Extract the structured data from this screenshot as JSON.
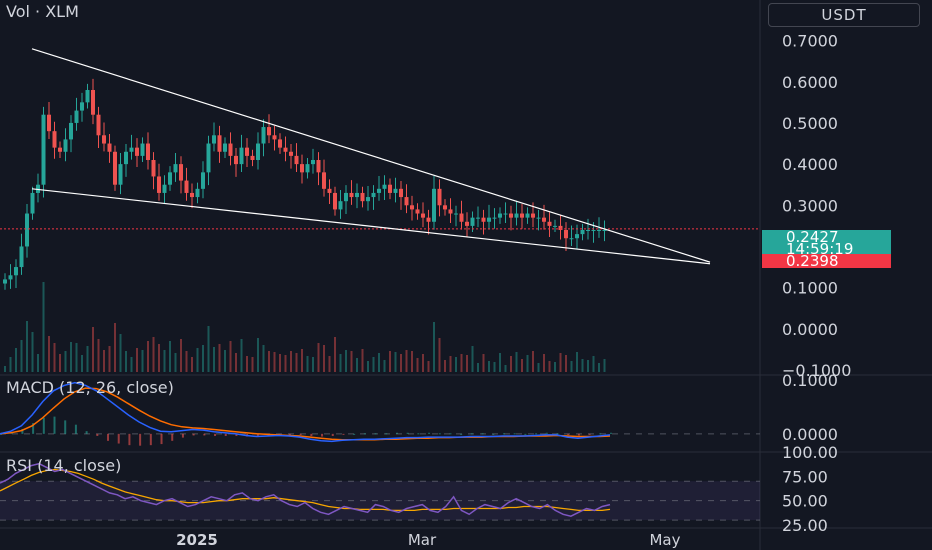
{
  "header": {
    "vol_label": "Vol · XLM",
    "currency_button": "USDT"
  },
  "price_scale": {
    "ticks": [
      "0.7000",
      "0.6000",
      "0.5000",
      "0.4000",
      "0.3000",
      "0.1000",
      "0.0000",
      "−0.1000"
    ],
    "current_price": "0.2427",
    "countdown": "14:59:19",
    "line_price": "0.2398"
  },
  "macd": {
    "title": "MACD (12, 26, close)",
    "ticks": [
      "0.1000",
      "0.0000"
    ]
  },
  "rsi": {
    "title": "RSI (14, close)",
    "ticks": [
      "100.00",
      "75.00",
      "50.00",
      "25.00"
    ]
  },
  "time_axis": {
    "labels": [
      "2025",
      "Mar",
      "May"
    ]
  },
  "colors": {
    "background": "#131722",
    "up": "#26a69a",
    "down": "#ef5350",
    "macd_line": "#2962ff",
    "signal_line": "#ff6d00",
    "rsi_line": "#7e57c2",
    "rsi_ma": "#f7a600",
    "trendline": "#ffffff"
  },
  "chart_data": {
    "type": "candlestick",
    "symbol": "XLM/USDT",
    "price_range": [
      -0.1,
      0.75
    ],
    "close_series": [
      0.12,
      0.13,
      0.15,
      0.2,
      0.28,
      0.33,
      0.35,
      0.52,
      0.48,
      0.44,
      0.43,
      0.46,
      0.5,
      0.53,
      0.55,
      0.58,
      0.52,
      0.47,
      0.45,
      0.43,
      0.35,
      0.4,
      0.43,
      0.44,
      0.42,
      0.45,
      0.41,
      0.37,
      0.33,
      0.35,
      0.38,
      0.4,
      0.36,
      0.33,
      0.32,
      0.34,
      0.38,
      0.45,
      0.47,
      0.43,
      0.45,
      0.42,
      0.4,
      0.44,
      0.42,
      0.41,
      0.45,
      0.49,
      0.47,
      0.46,
      0.44,
      0.43,
      0.42,
      0.4,
      0.38,
      0.4,
      0.41,
      0.38,
      0.34,
      0.33,
      0.29,
      0.31,
      0.33,
      0.32,
      0.33,
      0.31,
      0.32,
      0.33,
      0.34,
      0.35,
      0.33,
      0.34,
      0.32,
      0.3,
      0.29,
      0.28,
      0.27,
      0.26,
      0.34,
      0.3,
      0.29,
      0.28,
      0.28,
      0.26,
      0.25,
      0.27,
      0.27,
      0.26,
      0.27,
      0.27,
      0.28,
      0.28,
      0.27,
      0.28,
      0.27,
      0.28,
      0.27,
      0.27,
      0.26,
      0.25,
      0.25,
      0.24,
      0.22,
      0.22,
      0.23,
      0.24,
      0.24,
      0.24,
      0.24,
      0.24
    ],
    "macd_range": [
      -0.03,
      0.1
    ],
    "macd": [
      0.0,
      0.005,
      0.015,
      0.035,
      0.06,
      0.08,
      0.09,
      0.095,
      0.09,
      0.08,
      0.065,
      0.05,
      0.035,
      0.022,
      0.012,
      0.005,
      0.004,
      0.006,
      0.008,
      0.007,
      0.004,
      0.002,
      0.0,
      -0.003,
      -0.005,
      -0.004,
      -0.003,
      -0.004,
      -0.006,
      -0.01,
      -0.013,
      -0.014,
      -0.012,
      -0.011,
      -0.01,
      -0.01,
      -0.009,
      -0.008,
      -0.007,
      -0.007,
      -0.006,
      -0.006,
      -0.006,
      -0.006,
      -0.005,
      -0.005,
      -0.005,
      -0.004,
      -0.004,
      -0.004,
      -0.003,
      -0.002,
      -0.002,
      -0.006,
      -0.008,
      -0.006,
      -0.004,
      -0.002
    ],
    "signal": [
      0.0,
      0.002,
      0.006,
      0.015,
      0.03,
      0.048,
      0.065,
      0.078,
      0.085,
      0.084,
      0.078,
      0.068,
      0.056,
      0.044,
      0.033,
      0.024,
      0.017,
      0.013,
      0.011,
      0.01,
      0.008,
      0.006,
      0.004,
      0.002,
      0.0,
      -0.001,
      -0.002,
      -0.003,
      -0.004,
      -0.006,
      -0.008,
      -0.01,
      -0.011,
      -0.011,
      -0.011,
      -0.011,
      -0.01,
      -0.01,
      -0.009,
      -0.008,
      -0.008,
      -0.007,
      -0.007,
      -0.006,
      -0.006,
      -0.006,
      -0.005,
      -0.005,
      -0.005,
      -0.004,
      -0.004,
      -0.004,
      -0.003,
      -0.004,
      -0.005,
      -0.005,
      -0.005,
      -0.004
    ],
    "rsi_range": [
      25,
      100
    ],
    "rsi": [
      68,
      72,
      78,
      82,
      86,
      88,
      84,
      80,
      82,
      78,
      74,
      70,
      66,
      62,
      58,
      56,
      52,
      54,
      50,
      48,
      46,
      50,
      52,
      48,
      44,
      46,
      50,
      54,
      52,
      50,
      56,
      58,
      52,
      50,
      54,
      56,
      50,
      46,
      44,
      48,
      42,
      38,
      36,
      40,
      44,
      42,
      40,
      38,
      46,
      44,
      40,
      38,
      42,
      44,
      46,
      40,
      38,
      44,
      54,
      40,
      36,
      42,
      46,
      44,
      42,
      48,
      52,
      48,
      44,
      42,
      46,
      40,
      36,
      34,
      38,
      42,
      40,
      44,
      46
    ],
    "rsi_ma": [
      60,
      64,
      68,
      72,
      76,
      79,
      81,
      82,
      81,
      80,
      78,
      75,
      72,
      68,
      65,
      62,
      59,
      57,
      55,
      53,
      51,
      50,
      50,
      49,
      48,
      48,
      48,
      49,
      50,
      50,
      51,
      52,
      52,
      52,
      52,
      53,
      52,
      51,
      50,
      49,
      48,
      46,
      44,
      43,
      42,
      42,
      41,
      41,
      41,
      41,
      40,
      40,
      40,
      40,
      41,
      41,
      41,
      41,
      42,
      42,
      42,
      42,
      42,
      42,
      42,
      43,
      43,
      44,
      44,
      44,
      44,
      43,
      42,
      41,
      40,
      40,
      40,
      40,
      41
    ]
  }
}
